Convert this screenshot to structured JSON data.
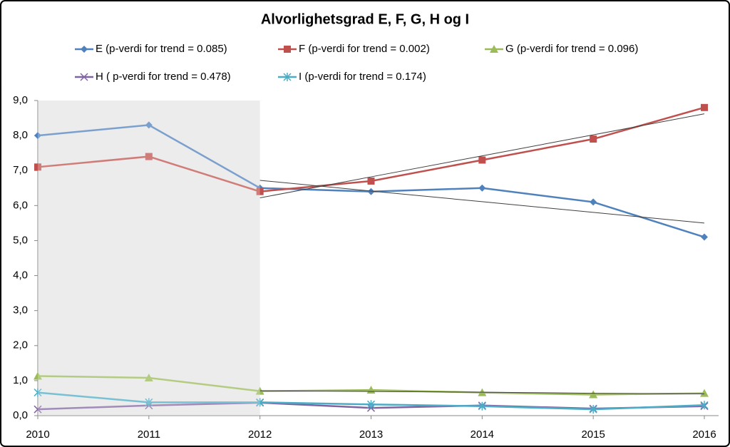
{
  "chart_data": {
    "type": "line",
    "title": "Alvorlighetsgrad E, F, G, H og I",
    "categories": [
      "2010",
      "2011",
      "2012",
      "2013",
      "2014",
      "2015",
      "2016"
    ],
    "series": [
      {
        "name": "E (p-verdi for trend = 0.085)",
        "color": "#4f81bd",
        "marker": "diamond",
        "values": [
          8.0,
          8.3,
          6.5,
          6.4,
          6.5,
          6.1,
          5.1
        ]
      },
      {
        "name": "F (p-verdi for trend = 0.002)",
        "color": "#c0504d",
        "marker": "square",
        "values": [
          7.1,
          7.4,
          6.4,
          6.7,
          7.3,
          7.9,
          8.8
        ]
      },
      {
        "name": "G (p-verdi for trend = 0.096)",
        "color": "#9bbb59",
        "marker": "triangle",
        "values": [
          1.13,
          1.08,
          0.7,
          0.73,
          0.66,
          0.6,
          0.64
        ]
      },
      {
        "name": "H ( p-verdi for trend = 0.478)",
        "color": "#8064a2",
        "marker": "x",
        "values": [
          0.18,
          0.29,
          0.37,
          0.22,
          0.29,
          0.2,
          0.27
        ]
      },
      {
        "name": "I (p-verdi for trend = 0.174)",
        "color": "#4bacc6",
        "marker": "star",
        "values": [
          0.66,
          0.38,
          0.38,
          0.32,
          0.27,
          0.18,
          0.3
        ]
      }
    ],
    "trendlines": [
      {
        "color": "#404040",
        "values": [
          null,
          null,
          6.72,
          6.415,
          6.11,
          5.805,
          5.5
        ]
      },
      {
        "color": "#404040",
        "values": [
          null,
          null,
          6.22,
          6.82,
          7.42,
          8.02,
          8.62
        ]
      },
      {
        "color": "#404040",
        "values": [
          null,
          null,
          0.71,
          0.69,
          0.67,
          0.64,
          0.62
        ]
      }
    ],
    "ylim": [
      0,
      9
    ],
    "yticks": [
      {
        "value": 0,
        "label": "0,0"
      },
      {
        "value": 1,
        "label": "1,0"
      },
      {
        "value": 2,
        "label": "2,0"
      },
      {
        "value": 3,
        "label": "3,0"
      },
      {
        "value": 4,
        "label": "4,0"
      },
      {
        "value": 5,
        "label": "5,0"
      },
      {
        "value": 6,
        "label": "6,0"
      },
      {
        "value": 7,
        "label": "7,0"
      },
      {
        "value": 8,
        "label": "8,0"
      },
      {
        "value": 9,
        "label": "9,0"
      }
    ],
    "grid": false
  }
}
